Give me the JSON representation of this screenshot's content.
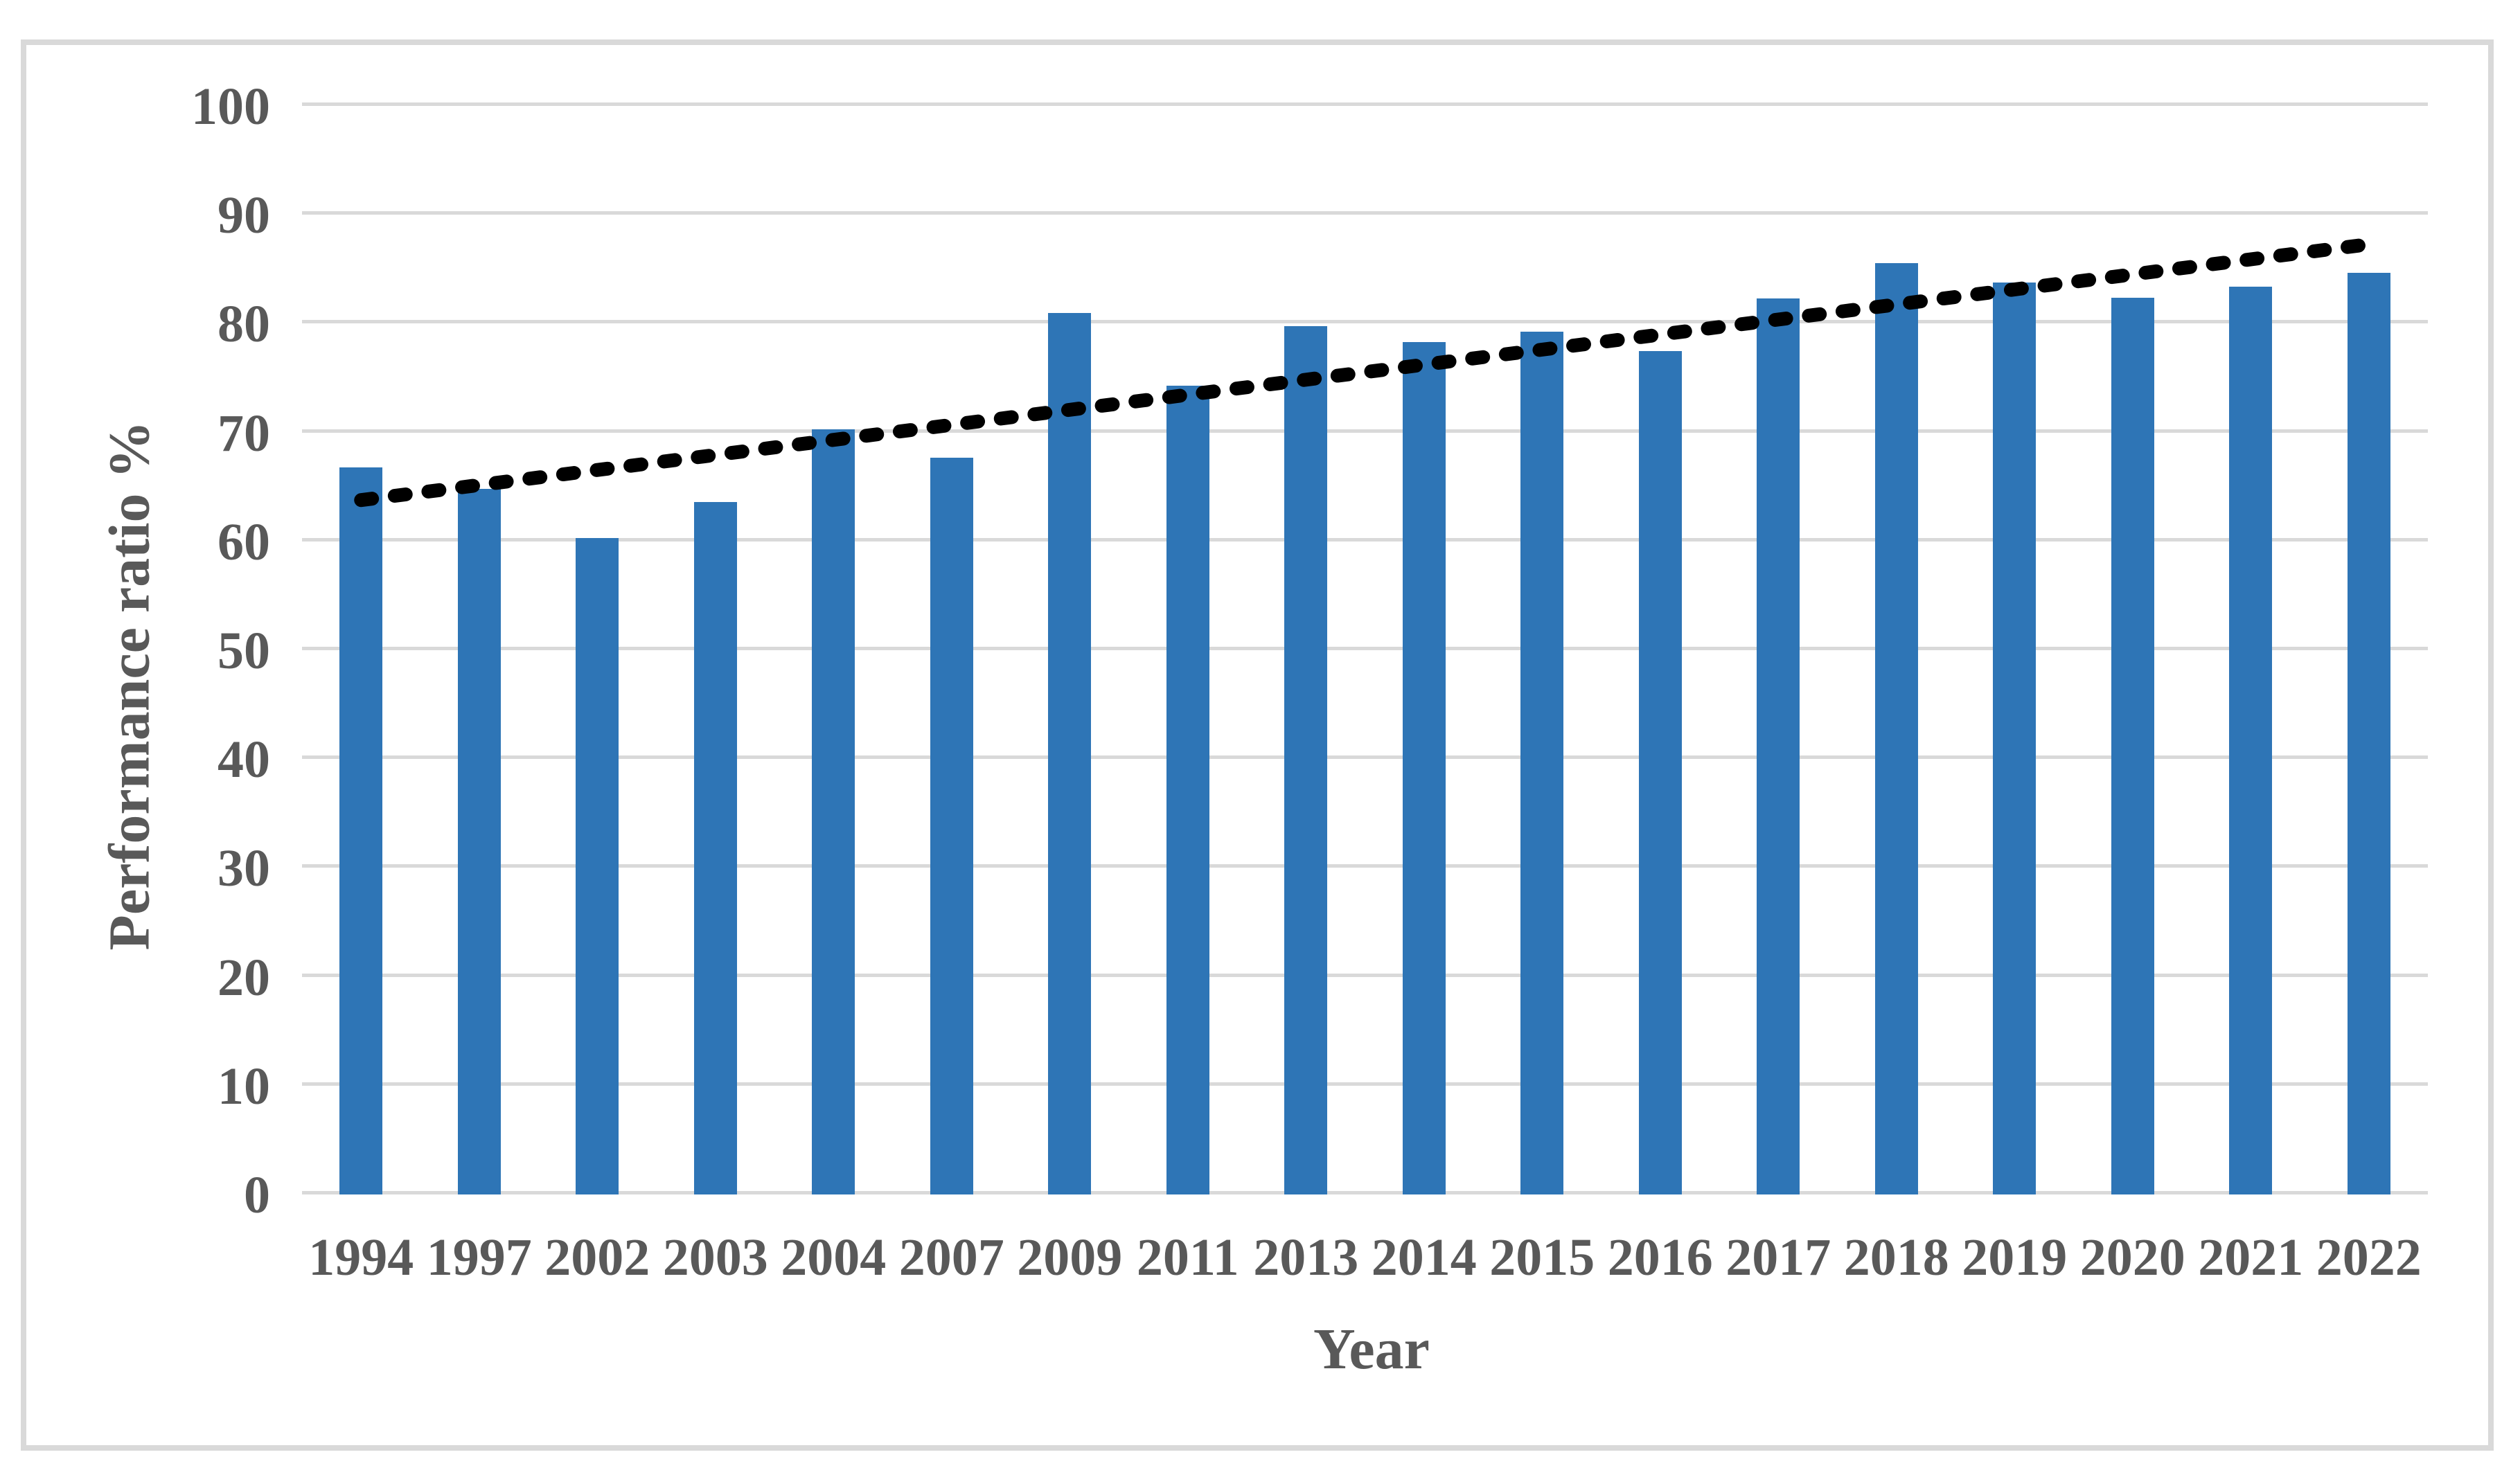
{
  "figure": {
    "background_color": "#FFFFFF",
    "border_color": "#D9D9D9"
  },
  "chart_data": {
    "type": "bar",
    "title": "",
    "categories": [
      "1994",
      "1997",
      "2002",
      "2003",
      "2004",
      "2007",
      "2009",
      "2011",
      "2013",
      "2014",
      "2015",
      "2016",
      "2017",
      "2018",
      "2019",
      "2020",
      "2021",
      "2022"
    ],
    "values": [
      66.6,
      64.6,
      60.1,
      63.4,
      70.1,
      67.5,
      80.8,
      74.1,
      79.6,
      78.1,
      79.1,
      77.3,
      82.1,
      85.4,
      83.6,
      82.2,
      83.2,
      84.5
    ],
    "bar_color": "#2E75B6",
    "xlabel": "Year",
    "ylabel": "Performance ratio %",
    "ylim": [
      0,
      100
    ],
    "yticks": [
      0,
      10,
      20,
      30,
      40,
      50,
      60,
      70,
      80,
      90,
      100
    ],
    "grid": "horizontal",
    "gridline_color": "#D9D9D9",
    "axis_text_color": "#595959",
    "legend": "none",
    "trendline": {
      "type": "linear",
      "style": "dashed",
      "color": "#000000",
      "start_value": 63.6,
      "end_value": 87.1
    }
  }
}
